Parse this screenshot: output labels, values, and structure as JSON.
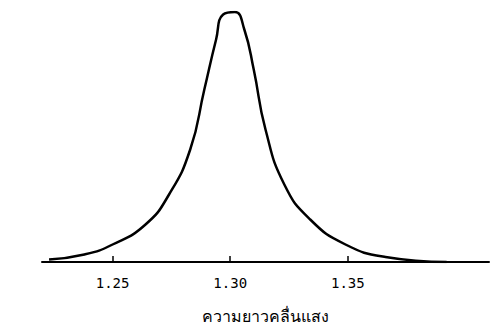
{
  "chart_data": {
    "type": "line",
    "x_label": "ความยาวคลื่นแสง",
    "x": [
      1.223,
      1.238,
      1.25,
      1.264,
      1.274,
      1.283,
      1.289,
      1.294,
      1.297,
      1.302,
      1.306,
      1.31,
      1.315,
      1.323,
      1.334,
      1.349,
      1.366,
      1.392
    ],
    "values": [
      1,
      3,
      7,
      15,
      27,
      45,
      69,
      89,
      99,
      100,
      93,
      77,
      53,
      31,
      17,
      7,
      2,
      0
    ],
    "color": "#000000",
    "line_style": "smooth",
    "xlim": [
      1.22,
      1.41
    ],
    "xticks": [
      1.25,
      {
        "value": 1.3,
        "label": "1.30"
      },
      1.35
    ],
    "ylim": [
      0,
      100
    ],
    "grid": false,
    "tick_labels": "x"
  }
}
